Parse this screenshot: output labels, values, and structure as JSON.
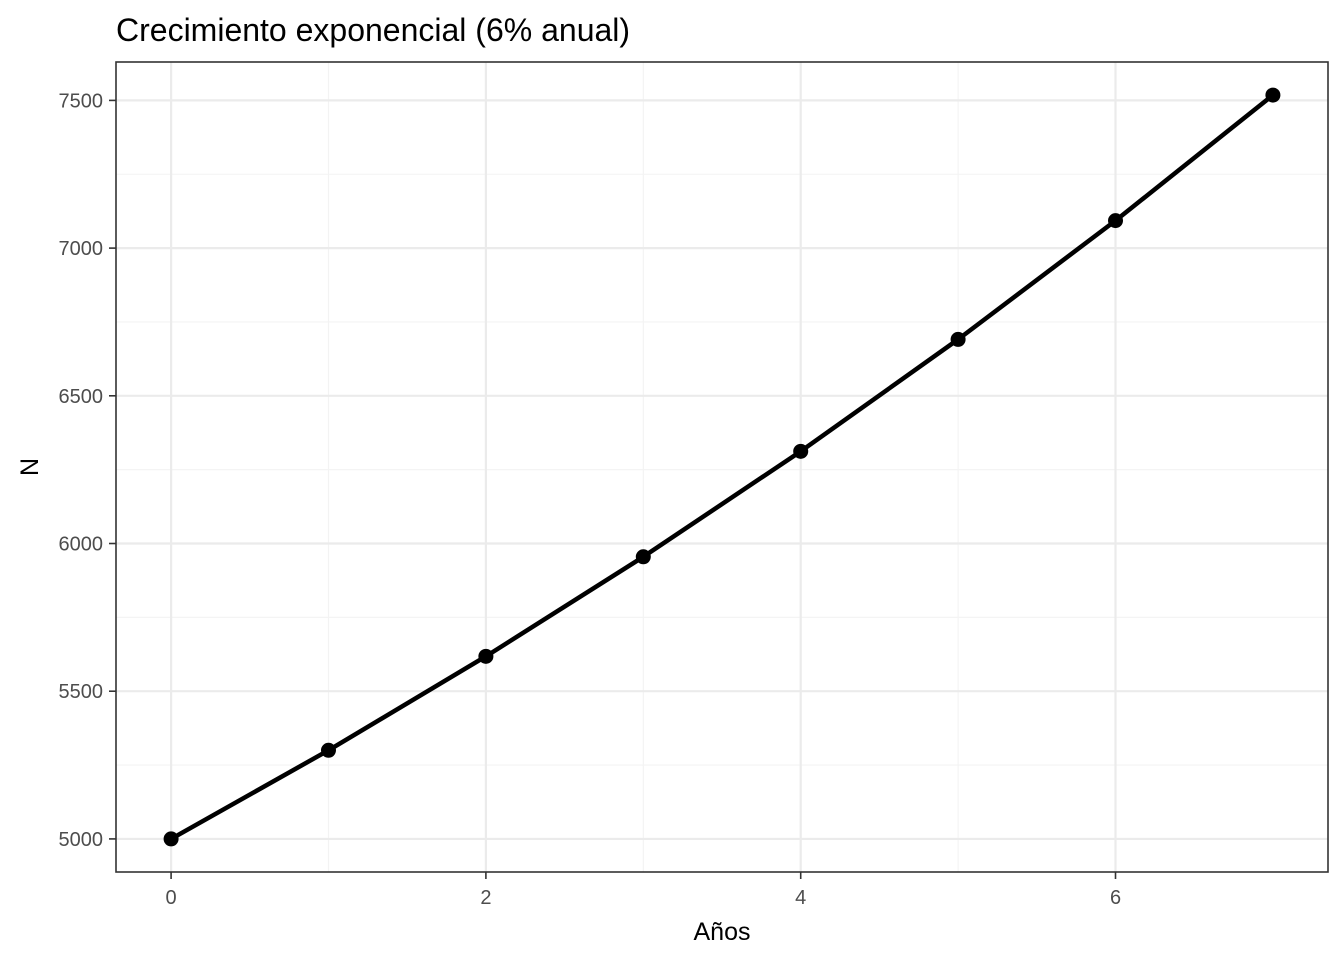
{
  "chart_data": {
    "type": "line",
    "title": "Crecimiento exponencial (6% anual)",
    "xlabel": "Años",
    "ylabel": "N",
    "x": [
      0,
      1,
      2,
      3,
      4,
      5,
      6,
      7
    ],
    "series": [
      {
        "values": [
          5000,
          5300,
          5618,
          5955,
          6312,
          6691,
          7093,
          7518
        ]
      }
    ],
    "xlim": [
      -0.35,
      7.35
    ],
    "ylim": [
      4888,
      7630
    ],
    "xticks": [
      0,
      2,
      4,
      6
    ],
    "yticks": [
      5000,
      5500,
      6000,
      6500,
      7000,
      7500
    ],
    "xtick_labels": [
      "0",
      "2",
      "4",
      "6"
    ],
    "ytick_labels": [
      "5000",
      "5500",
      "6000",
      "6500",
      "7000",
      "7500"
    ],
    "grid": true,
    "line_color": "#000000",
    "point_color": "#000000"
  }
}
